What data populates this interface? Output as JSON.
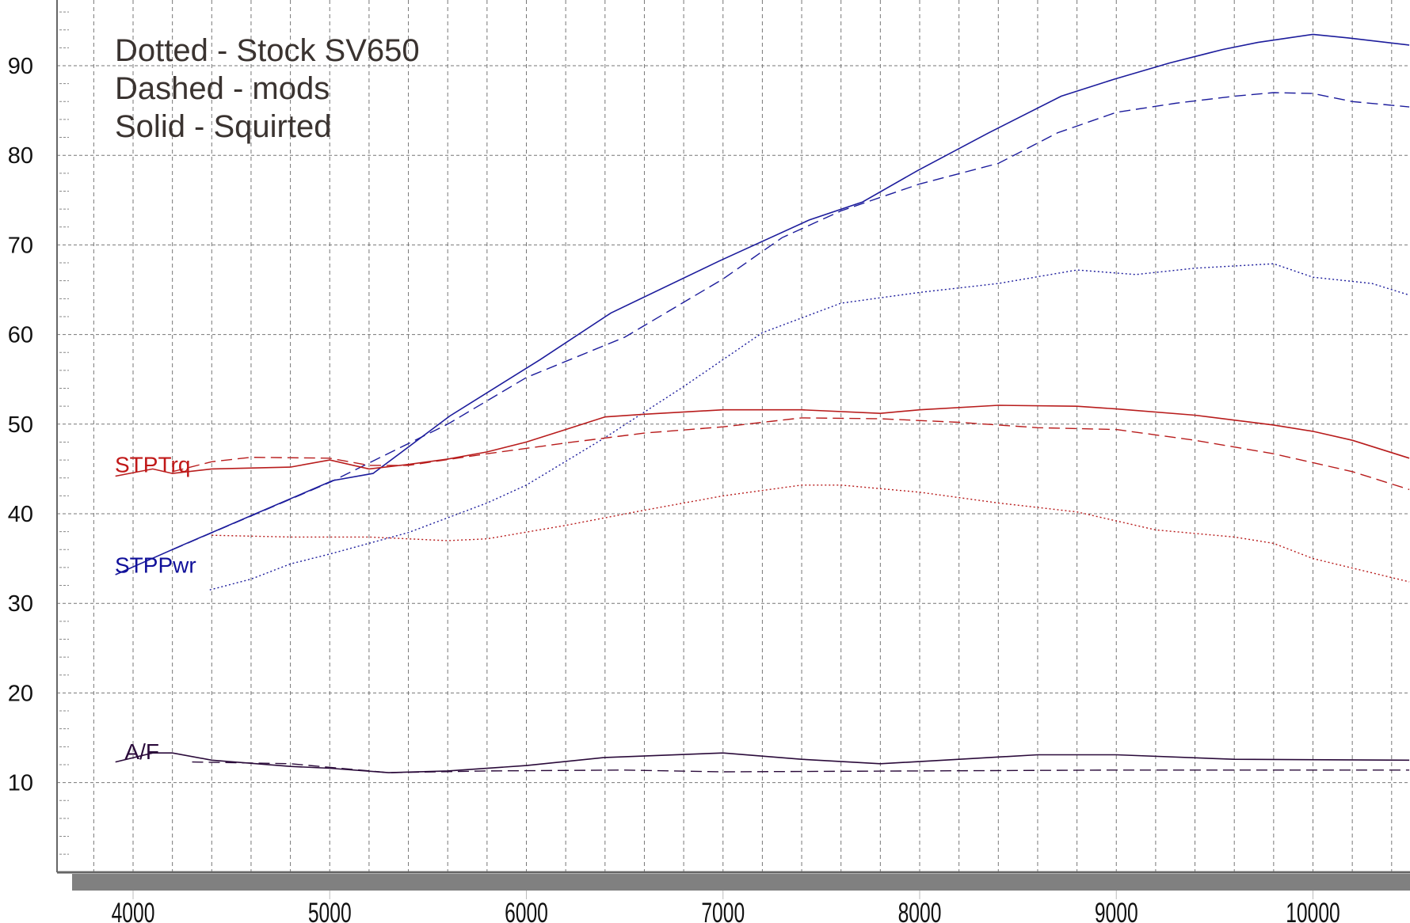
{
  "chart_data": {
    "type": "line",
    "title": "",
    "xlabel": "",
    "ylabel": "",
    "xlim": [
      3800,
      10490
    ],
    "ylim": [
      0,
      97.3
    ],
    "x_ticks": [
      4000,
      5000,
      6000,
      7000,
      8000,
      9000,
      10000
    ],
    "y_ticks": [
      10,
      20,
      30,
      40,
      50,
      60,
      70,
      80,
      90
    ],
    "grid": true,
    "legend_notes": [
      "Dotted - Stock SV650",
      "Dashed - mods",
      "Solid - Squirted"
    ],
    "channel_labels": [
      {
        "text": "STPTrq",
        "color": "#c01818",
        "anchor_x": 4000,
        "anchor_y": 45.5
      },
      {
        "text": "STPPwr",
        "color": "#10109a",
        "anchor_x": 4000,
        "anchor_y": 34.3
      },
      {
        "text": "A/F",
        "color": "#2a0a3a",
        "anchor_x": 4050,
        "anchor_y": 13.5
      }
    ],
    "colors": {
      "power": "#1c1c9c",
      "torque": "#b81c1c",
      "af": "#2a0a3a"
    },
    "series": [
      {
        "name": "STPPwr Squirted",
        "style": "solid",
        "group": "power",
        "x": [
          3910,
          4240,
          5015,
          5220,
          5610,
          6070,
          6430,
          6980,
          7440,
          7710,
          7990,
          8350,
          8720,
          8990,
          9270,
          9540,
          9720,
          10000,
          10180,
          10490
        ],
        "y": [
          33.2,
          36.4,
          43.7,
          44.5,
          50.9,
          57.2,
          62.4,
          68.2,
          72.8,
          74.8,
          78.3,
          82.5,
          86.6,
          88.5,
          90.3,
          91.8,
          92.6,
          93.5,
          93.1,
          92.3
        ]
      },
      {
        "name": "STPPwr mods",
        "style": "dashed",
        "group": "power",
        "x": [
          4200,
          5000,
          5600,
          6000,
          6500,
          7000,
          7300,
          7600,
          8000,
          8400,
          8700,
          9000,
          9300,
          9600,
          9800,
          10000,
          10200,
          10490
        ],
        "y": [
          36.0,
          43.5,
          50.0,
          55.2,
          59.7,
          66.2,
          70.8,
          73.8,
          76.8,
          79.1,
          82.5,
          84.8,
          85.8,
          86.6,
          87.0,
          86.9,
          86.0,
          85.4
        ]
      },
      {
        "name": "STPPwr Stock SV650",
        "style": "dotted",
        "group": "power",
        "x": [
          4390,
          4600,
          4800,
          5000,
          5400,
          5800,
          6000,
          6400,
          6800,
          7200,
          7600,
          8000,
          8400,
          8800,
          9100,
          9400,
          9800,
          10000,
          10300,
          10490
        ],
        "y": [
          31.5,
          32.7,
          34.4,
          35.5,
          37.9,
          41.2,
          43.2,
          48.5,
          54.2,
          60.2,
          63.5,
          64.7,
          65.7,
          67.2,
          66.7,
          67.4,
          67.9,
          66.4,
          65.7,
          64.4
        ]
      },
      {
        "name": "STPTrq Squirted",
        "style": "solid",
        "group": "torque",
        "x": [
          3910,
          4100,
          4200,
          4400,
          4800,
          5000,
          5200,
          5400,
          5600,
          5800,
          6000,
          6200,
          6400,
          6600,
          7000,
          7400,
          7800,
          8000,
          8400,
          8800,
          9000,
          9400,
          9800,
          10000,
          10200,
          10490
        ],
        "y": [
          44.2,
          45.0,
          44.5,
          45.0,
          45.2,
          46.0,
          45.0,
          45.5,
          46.1,
          46.9,
          48.0,
          49.4,
          50.8,
          51.1,
          51.6,
          51.6,
          51.2,
          51.6,
          52.1,
          52.0,
          51.7,
          51.0,
          49.9,
          49.2,
          48.2,
          46.2
        ]
      },
      {
        "name": "STPTrq mods",
        "style": "dashed",
        "group": "torque",
        "x": [
          4200,
          4400,
          4600,
          5000,
          5200,
          5400,
          5800,
          6200,
          6600,
          7000,
          7400,
          7800,
          8200,
          8600,
          9000,
          9400,
          9800,
          10200,
          10490
        ],
        "y": [
          44.7,
          45.8,
          46.3,
          46.2,
          45.4,
          45.4,
          46.7,
          47.9,
          49.0,
          49.7,
          50.7,
          50.6,
          50.2,
          49.6,
          49.4,
          48.2,
          46.7,
          44.7,
          42.7
        ]
      },
      {
        "name": "STPTrq Stock SV650",
        "style": "dotted",
        "group": "torque",
        "x": [
          4400,
          4800,
          5200,
          5600,
          5800,
          6200,
          6600,
          7000,
          7400,
          7600,
          8000,
          8400,
          8800,
          9200,
          9600,
          9800,
          10000,
          10490
        ],
        "y": [
          37.6,
          37.4,
          37.4,
          37.0,
          37.2,
          38.7,
          40.4,
          42.0,
          43.2,
          43.2,
          42.4,
          41.2,
          40.2,
          38.2,
          37.4,
          36.7,
          35.0,
          32.4
        ]
      },
      {
        "name": "A/F Squirted",
        "style": "solid",
        "group": "af",
        "x": [
          3910,
          4100,
          4200,
          4400,
          4800,
          5000,
          5300,
          5600,
          6000,
          6400,
          7000,
          7400,
          7800,
          8200,
          8600,
          9000,
          9600,
          10490
        ],
        "y": [
          12.3,
          13.3,
          13.3,
          12.5,
          11.8,
          11.6,
          11.1,
          11.3,
          11.9,
          12.8,
          13.3,
          12.6,
          12.1,
          12.6,
          13.1,
          13.1,
          12.6,
          12.5
        ]
      },
      {
        "name": "A/F mods",
        "style": "dashed",
        "group": "af",
        "x": [
          4300,
          4800,
          5300,
          5800,
          6500,
          7000,
          8000,
          9000,
          10490
        ],
        "y": [
          12.3,
          12.1,
          11.1,
          11.3,
          11.4,
          11.2,
          11.3,
          11.4,
          11.4
        ]
      }
    ]
  }
}
